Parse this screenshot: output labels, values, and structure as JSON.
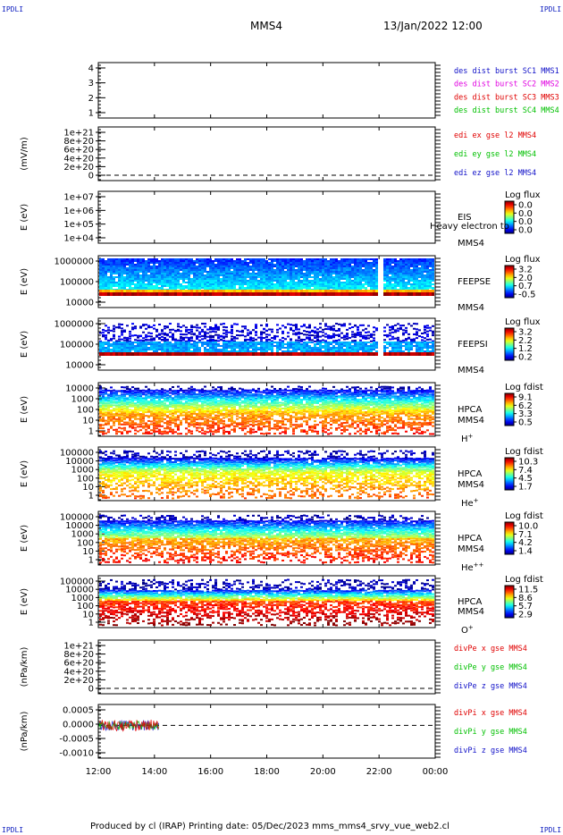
{
  "header": {
    "corner_label": "IPDLI",
    "spacecraft": "MMS4",
    "datetime": "13/Jan/2022 12:00"
  },
  "footer": {
    "text": "Produced by cl (IRAP)   Printing date: 05/Dec/2023   mms_mms4_srvy_vue_web2.cl"
  },
  "colors": {
    "mms1": "#1010c8",
    "mms2": "#e000e0",
    "mms3": "#e00000",
    "mms4": "#00c000",
    "x": "#e00000",
    "y": "#00c000",
    "z": "#1010c8"
  },
  "chart_data": [
    {
      "type": "line",
      "ylim": [
        0.5,
        4.5
      ],
      "yticks": [
        "4",
        "3",
        "2",
        "1"
      ],
      "ylabel": "",
      "legend": [
        "des dist burst SC1 MMS1",
        "des dist burst SC2 MMS2",
        "des dist burst SC3 MMS3",
        "des dist burst SC4 MMS4"
      ],
      "legend_position": "right",
      "data": "none"
    },
    {
      "type": "line",
      "ylabel": "(mV/m)",
      "yticks": [
        "1e+21",
        "8e+20",
        "6e+20",
        "4e+20",
        "2e+20",
        "0"
      ],
      "legend": [
        "edi ex gse l2 MMS4",
        "edi ey gse l2 MMS4",
        "edi ez gse l2 MMS4"
      ],
      "legend_position": "right",
      "data": "none",
      "dashed_zero_line": true
    },
    {
      "type": "heatmap",
      "ylabel": "E (eV)",
      "yticks": [
        "1e+07",
        "1e+06",
        "1e+05",
        "1e+04"
      ],
      "yscale": "log",
      "instrument": [
        "EIS",
        "MMS4"
      ],
      "overlay_text": "Heavy electron to",
      "colorbar_title": "Log flux",
      "colorbar_ticks": [
        "0.0",
        "0.0",
        "0.0",
        "0.0"
      ],
      "data": "none"
    },
    {
      "type": "heatmap",
      "ylabel": "E (eV)",
      "yticks": [
        "1000000",
        "100000",
        "10000"
      ],
      "yscale": "log",
      "instrument": [
        "FEEPSE",
        "MMS4"
      ],
      "colorbar_title": "Log flux",
      "colorbar_ticks": [
        "3.2",
        "2.0",
        "0.7",
        "-0.5"
      ],
      "data_gap_at": "22:00"
    },
    {
      "type": "heatmap",
      "ylabel": "E (eV)",
      "yticks": [
        "1000000",
        "100000",
        "10000"
      ],
      "yscale": "log",
      "instrument": [
        "FEEPSI",
        "MMS4"
      ],
      "colorbar_title": "Log flux",
      "colorbar_ticks": [
        "3.2",
        "2.2",
        "1.2",
        "0.2"
      ],
      "data_gap_at": "22:00"
    },
    {
      "type": "heatmap",
      "ylabel": "E (eV)",
      "yticks": [
        "10000",
        "1000",
        "100",
        "10",
        "1"
      ],
      "yscale": "log",
      "instrument": [
        "HPCA",
        "MMS4"
      ],
      "species": "H",
      "species_sup": "+",
      "colorbar_title": "Log fdist",
      "colorbar_ticks": [
        "9.1",
        "6.2",
        "3.3",
        "0.5"
      ]
    },
    {
      "type": "heatmap",
      "ylabel": "E (eV)",
      "yticks": [
        "100000",
        "10000",
        "1000",
        "100",
        "10",
        "1"
      ],
      "yscale": "log",
      "instrument": [
        "HPCA",
        "MMS4"
      ],
      "species": "He",
      "species_sup": "+",
      "colorbar_title": "Log fdist",
      "colorbar_ticks": [
        "10.3",
        "7.4",
        "4.5",
        "1.7"
      ]
    },
    {
      "type": "heatmap",
      "ylabel": "E (eV)",
      "yticks": [
        "100000",
        "10000",
        "1000",
        "100",
        "10",
        "1"
      ],
      "yscale": "log",
      "instrument": [
        "HPCA",
        "MMS4"
      ],
      "species": "He",
      "species_sup": "++",
      "colorbar_title": "Log fdist",
      "colorbar_ticks": [
        "10.0",
        "7.1",
        "4.2",
        "1.4"
      ]
    },
    {
      "type": "heatmap",
      "ylabel": "E (eV)",
      "yticks": [
        "100000",
        "10000",
        "1000",
        "100",
        "10",
        "1"
      ],
      "yscale": "log",
      "instrument": [
        "HPCA",
        "MMS4"
      ],
      "species": "O",
      "species_sup": "+",
      "colorbar_title": "Log fdist",
      "colorbar_ticks": [
        "11.5",
        "8.6",
        "5.7",
        "2.9"
      ]
    },
    {
      "type": "line",
      "ylabel": "(nPa/km)",
      "yticks": [
        "1e+21",
        "8e+20",
        "6e+20",
        "4e+20",
        "2e+20",
        "0"
      ],
      "legend": [
        "divPe x gse MMS4",
        "divPe y gse MMS4",
        "divPe z gse MMS4"
      ],
      "legend_position": "right",
      "data": "none",
      "dashed_zero_line": true
    },
    {
      "type": "line",
      "ylabel": "(nPa/km)",
      "yticks": [
        "0.0005",
        "0.0000",
        "-0.0005",
        "-0.0010"
      ],
      "ytick_values": [
        0.0005,
        0.0,
        -0.0005,
        -0.001
      ],
      "ylim": [
        -0.00125,
        0.0008
      ],
      "legend": [
        "divPi x gse MMS4",
        "divPi y gse MMS4",
        "divPi z gse MMS4"
      ],
      "legend_position": "right",
      "data_interval": [
        "12:00",
        "14:10"
      ],
      "amplitude": 0.0002,
      "dashed_zero_line": true
    }
  ],
  "time_axis": {
    "ticks": [
      "12:00",
      "14:00",
      "16:00",
      "18:00",
      "20:00",
      "22:00",
      "00:00"
    ],
    "range_hours": [
      12,
      24
    ]
  }
}
